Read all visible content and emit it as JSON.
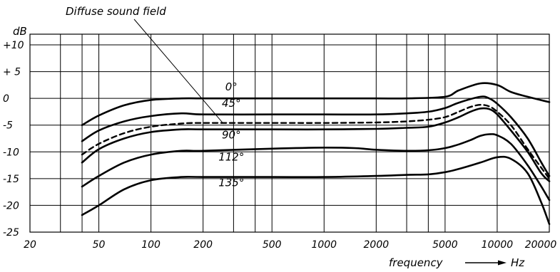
{
  "chart_data": {
    "type": "line",
    "title": "",
    "xlabel": "frequency",
    "xunit": "Hz",
    "ylabel": "dB",
    "x_scale": "log",
    "xlim": [
      20,
      20000
    ],
    "ylim": [
      -25,
      12
    ],
    "grid": true,
    "x_ticks": [
      20,
      50,
      100,
      200,
      500,
      1000,
      2000,
      5000,
      10000,
      20000
    ],
    "x_tick_labels": [
      "20",
      "50",
      "100",
      "200",
      "500",
      "1000",
      "2000",
      "5000",
      "10000",
      "20000"
    ],
    "x_gridlines": [
      20,
      30,
      40,
      50,
      100,
      200,
      300,
      400,
      500,
      1000,
      2000,
      3000,
      4000,
      5000,
      10000,
      20000
    ],
    "y_ticks": [
      10,
      5,
      0,
      -5,
      -10,
      -15,
      -20,
      -25
    ],
    "y_tick_labels": [
      "+10",
      "+ 5",
      "0",
      "-5",
      "-10",
      "-15",
      "-20",
      "-25"
    ],
    "annotation": "Diffuse sound field",
    "series": [
      {
        "name": "0°",
        "style": "solid",
        "x": [
          40,
          50,
          70,
          100,
          150,
          200,
          500,
          1000,
          2000,
          3000,
          5000,
          6000,
          8000,
          10000,
          12000,
          15000,
          20000
        ],
        "y": [
          -5,
          -3.2,
          -1.3,
          -0.3,
          0,
          0,
          0,
          0,
          0,
          0,
          0.3,
          1.5,
          2.8,
          2.5,
          1.2,
          0.3,
          -0.7
        ]
      },
      {
        "name": "45°",
        "style": "solid",
        "x": [
          40,
          50,
          70,
          100,
          150,
          200,
          500,
          1000,
          2000,
          3000,
          4000,
          5000,
          6000,
          8000,
          9000,
          10000,
          12000,
          15000,
          18000,
          20000
        ],
        "y": [
          -8,
          -6,
          -4.3,
          -3.3,
          -2.8,
          -3,
          -3,
          -3,
          -3,
          -2.8,
          -2.5,
          -1.8,
          -0.8,
          0.3,
          0,
          -1,
          -3.5,
          -7.5,
          -12,
          -14.5
        ]
      },
      {
        "name": "Diffuse sound field",
        "style": "dashed",
        "x": [
          40,
          50,
          70,
          100,
          150,
          200,
          500,
          1000,
          2000,
          3000,
          4000,
          5000,
          6000,
          7000,
          8000,
          9000,
          10000,
          12000,
          15000,
          18000,
          20000
        ],
        "y": [
          -10.5,
          -8.5,
          -6.5,
          -5.3,
          -4.7,
          -4.6,
          -4.6,
          -4.6,
          -4.5,
          -4.3,
          -4,
          -3.5,
          -2.5,
          -1.6,
          -1.2,
          -1.5,
          -2.5,
          -5,
          -9.5,
          -13,
          -15
        ]
      },
      {
        "name": "90°",
        "style": "solid",
        "x": [
          40,
          50,
          70,
          100,
          150,
          200,
          500,
          1000,
          2000,
          3000,
          4000,
          5000,
          6000,
          7000,
          8000,
          9000,
          10000,
          12000,
          15000,
          18000,
          20000
        ],
        "y": [
          -12,
          -9.5,
          -7.5,
          -6.3,
          -5.8,
          -5.8,
          -5.8,
          -5.8,
          -5.7,
          -5.5,
          -5.3,
          -4.5,
          -3.5,
          -2.5,
          -1.9,
          -2,
          -3,
          -6,
          -10,
          -14,
          -15.5
        ]
      },
      {
        "name": "112°",
        "style": "solid",
        "x": [
          40,
          50,
          70,
          100,
          150,
          200,
          500,
          1000,
          1500,
          2000,
          3000,
          4000,
          5000,
          6000,
          7000,
          8000,
          9000,
          10000,
          12000,
          15000,
          18000,
          20000
        ],
        "y": [
          -16.5,
          -14.5,
          -12,
          -10.5,
          -9.8,
          -9.8,
          -9.4,
          -9.2,
          -9.3,
          -9.6,
          -9.8,
          -9.7,
          -9.3,
          -8.6,
          -7.8,
          -7,
          -6.7,
          -6.9,
          -8.5,
          -12.5,
          -16.5,
          -19
        ]
      },
      {
        "name": "135°",
        "style": "solid",
        "x": [
          40,
          50,
          70,
          100,
          150,
          200,
          500,
          1000,
          2000,
          3000,
          4000,
          5000,
          6000,
          8000,
          10000,
          12000,
          15000,
          18000,
          20000
        ],
        "y": [
          -21.8,
          -20,
          -17,
          -15.3,
          -14.7,
          -14.7,
          -14.7,
          -14.7,
          -14.5,
          -14.3,
          -14.2,
          -13.8,
          -13.2,
          -12,
          -11,
          -11.3,
          -14,
          -19.5,
          -23.5
        ]
      }
    ]
  }
}
